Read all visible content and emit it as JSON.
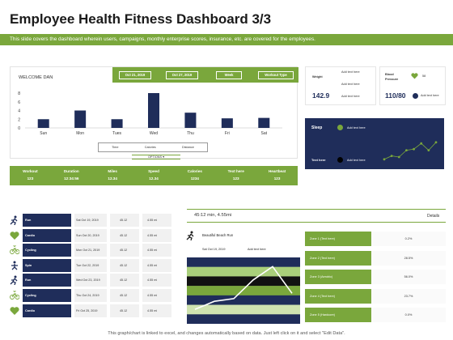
{
  "header": {
    "title": "Employee Health Fitness Dashboard 3/3",
    "banner": "This slide covers the dashboard wherein users, campaigns, monthly enterprise scores, insurance, etc. are covered for the employees."
  },
  "weekly": {
    "welcome": "WELCOME DAN",
    "date_from": "Oct 21, 2019",
    "date_to": "Oct 27, 2019",
    "period": "Week",
    "workout_type": "Workout Type",
    "legend": [
      "Time",
      "Calories",
      "Distance"
    ],
    "options": "OPTIONS",
    "bar_color": "#1f2d5a"
  },
  "chart_data": {
    "type": "bar",
    "categories": [
      "Sun",
      "Mon",
      "Tues",
      "Wed",
      "Thu",
      "Fri",
      "Sat"
    ],
    "values": [
      2,
      4,
      2,
      8,
      3.5,
      2.2,
      2.3
    ],
    "yticks": [
      "0",
      "2",
      "4",
      "6",
      "8"
    ],
    "ylim": [
      0,
      8
    ]
  },
  "stats": [
    {
      "label": "Workout",
      "value": "123"
    },
    {
      "label": "Duration",
      "value": "12:34:56"
    },
    {
      "label": "Miles",
      "value": "12.34"
    },
    {
      "label": "Speed",
      "value": "12.34"
    },
    {
      "label": "Calories",
      "value": "1234"
    },
    {
      "label": "Text here",
      "value": "123"
    },
    {
      "label": "Heartbeat",
      "value": "123"
    }
  ],
  "weight_card": {
    "label": "Weight",
    "value": "142.9",
    "notes": [
      "Add text here",
      "Add text here",
      "Add text here"
    ]
  },
  "bp_card": {
    "label": "Blood Pressure",
    "value": "110/80",
    "bpm": "58",
    "note": "Add text here"
  },
  "sleep_card": {
    "label": "Sleep",
    "note1": "Add text here",
    "label2": "Text here",
    "note2": "Add text here",
    "points": [
      0.15,
      0.3,
      0.25,
      0.55,
      0.6,
      0.85,
      0.55,
      0.9
    ]
  },
  "activities": [
    {
      "name": "Run",
      "date": "Sat Oct 19, 2019",
      "time": "45.12",
      "speed": "4.55 mi",
      "icon": "run-icon"
    },
    {
      "name": "Cardio",
      "date": "Sun Oct 20, 2019",
      "time": "45.12",
      "speed": "4.55 mi",
      "icon": "heart-icon"
    },
    {
      "name": "Cycling",
      "date": "Mon Oct 21, 2019",
      "time": "45.12",
      "speed": "4.55 mi",
      "icon": "bike-icon"
    },
    {
      "name": "Spin",
      "date": "Tue Oct 22, 2019",
      "time": "45.12",
      "speed": "4.55 mi",
      "icon": "spin-icon"
    },
    {
      "name": "Run",
      "date": "Wed Oct 23, 2019",
      "time": "45.12",
      "speed": "4.55 mi",
      "icon": "run-icon"
    },
    {
      "name": "Cycling",
      "date": "Thu Oct 24, 2019",
      "time": "45.12",
      "speed": "4.55 mi",
      "icon": "bike-icon"
    },
    {
      "name": "Cardio",
      "date": "Fri Oct 25, 2019",
      "time": "45.12",
      "speed": "4.55 mi",
      "icon": "heart-icon"
    }
  ],
  "session": {
    "summary": "45:12 min, 4.55mi",
    "details": "Details",
    "name": "Beautiful Beach Run",
    "date": "Sat Oct 19, 2019",
    "note": "Add text here",
    "line": [
      0.15,
      0.3,
      0.35,
      0.7,
      0.95,
      0.45
    ]
  },
  "zones": [
    {
      "label": "Zone 1 (Text here)",
      "value": "0.2%"
    },
    {
      "label": "Zone 2 (Text here)",
      "value": "28.5%"
    },
    {
      "label": "Zone 3 (Aerobic)",
      "value": "56.0%"
    },
    {
      "label": "Zone 4 (Text here)",
      "value": "23.7%"
    },
    {
      "label": "Zone 5 (Hardcore)",
      "value": "0.0%"
    }
  ],
  "footer": "This graph/chart is linked to excel, and changes automatically based on data. Just left click on it and select \"Edit Data\"."
}
